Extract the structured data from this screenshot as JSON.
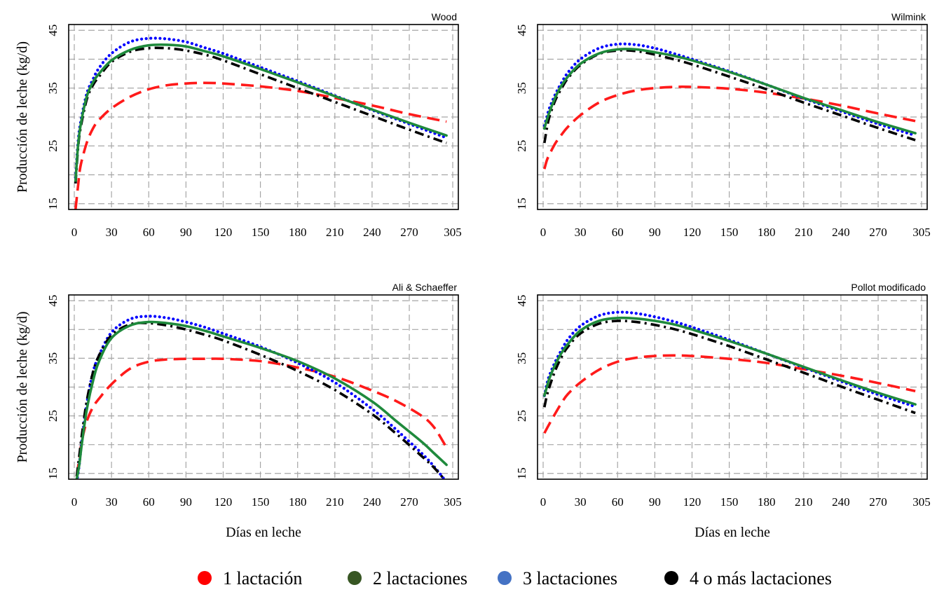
{
  "chart_data": {
    "type": "line",
    "shared": {
      "ylabel": "Producción de leche (kg/d)",
      "xlabel": "Días en leche",
      "xlim": [
        0,
        305
      ],
      "ylim": [
        14,
        46
      ],
      "xticks": [
        0,
        30,
        60,
        90,
        120,
        150,
        180,
        210,
        240,
        270,
        305
      ],
      "yticks": [
        15,
        25,
        35,
        45
      ],
      "grid": true
    },
    "legend": [
      {
        "label": "1 lactación",
        "color": "#ff0000"
      },
      {
        "label": "2 lactaciones",
        "color": "#375623"
      },
      {
        "label": "3 lactaciones",
        "color": "#4472c4"
      },
      {
        "label": "4 o más lactaciones",
        "color": "#000000"
      }
    ],
    "series_style": [
      {
        "name": "1 lactación",
        "color": "#ff1a1a",
        "dash": "long-dash"
      },
      {
        "name": "2 lactaciones",
        "color": "#1f8a3c",
        "dash": "solid"
      },
      {
        "name": "3 lactaciones",
        "color": "#0000ff",
        "dash": "dotted"
      },
      {
        "name": "4 o más lactaciones",
        "color": "#000000",
        "dash": "dash-dot"
      }
    ],
    "panels": [
      {
        "title": "Wood",
        "x": [
          1,
          3,
          5,
          10,
          15,
          20,
          30,
          45,
          60,
          75,
          90,
          105,
          120,
          150,
          180,
          210,
          240,
          270,
          300
        ],
        "series": [
          {
            "name": "1 lactación",
            "values": [
              14.0,
              18.0,
              21.5,
              25.5,
              28.0,
              29.5,
              31.5,
              33.5,
              34.8,
              35.5,
              35.8,
              35.9,
              35.8,
              35.3,
              34.5,
              33.3,
              32.0,
              30.5,
              29.2
            ]
          },
          {
            "name": "2 lactaciones",
            "values": [
              19.0,
              25.0,
              28.5,
              33.5,
              36.0,
              37.5,
              39.8,
              41.6,
              42.4,
              42.5,
              42.2,
              41.4,
              40.5,
              38.3,
              36.0,
              33.6,
              31.3,
              29.0,
              26.8
            ]
          },
          {
            "name": "3 lactaciones",
            "values": [
              19.5,
              25.5,
              29.0,
              34.0,
              36.5,
              38.5,
              41.0,
              43.0,
              43.6,
              43.5,
              43.0,
              42.0,
              41.0,
              38.6,
              36.2,
              33.7,
              31.2,
              28.8,
              26.4
            ]
          },
          {
            "name": "4 o más lactaciones",
            "values": [
              18.5,
              24.5,
              28.0,
              33.0,
              35.5,
              37.0,
              39.5,
              41.3,
              41.9,
              41.9,
              41.5,
              40.8,
              39.8,
              37.4,
              35.0,
              32.6,
              30.2,
              27.8,
              25.5
            ]
          }
        ]
      },
      {
        "title": "Wilmink",
        "x": [
          1,
          3,
          5,
          10,
          15,
          20,
          30,
          45,
          60,
          75,
          90,
          105,
          120,
          150,
          180,
          210,
          240,
          270,
          300
        ],
        "series": [
          {
            "name": "1 lactación",
            "values": [
              21.0,
              22.5,
              23.5,
              25.5,
              27.0,
              28.3,
              30.3,
              32.5,
              33.8,
              34.6,
              35.0,
              35.2,
              35.2,
              34.9,
              34.2,
              33.2,
              32.0,
              30.6,
              29.3
            ]
          },
          {
            "name": "2 lactaciones",
            "values": [
              28.0,
              29.5,
              30.8,
              33.5,
              35.5,
              37.0,
              39.2,
              41.0,
              41.7,
              41.7,
              41.2,
              40.6,
              39.8,
              37.8,
              35.6,
              33.3,
              31.2,
              29.1,
              27.2
            ]
          },
          {
            "name": "3 lactaciones",
            "values": [
              28.5,
              30.0,
              31.5,
              34.0,
              36.0,
              37.7,
              40.0,
              41.9,
              42.6,
              42.5,
              41.9,
              41.0,
              40.0,
              37.9,
              35.6,
              33.2,
              31.0,
              28.8,
              26.8
            ]
          },
          {
            "name": "4 o más lactaciones",
            "values": [
              25.5,
              28.0,
              30.0,
              33.0,
              35.0,
              36.7,
              39.0,
              40.9,
              41.5,
              41.4,
              40.8,
              40.0,
              39.1,
              37.0,
              34.8,
              32.5,
              30.3,
              28.1,
              26.0
            ]
          }
        ]
      },
      {
        "title": "Ali & Schaeffer",
        "x": [
          2,
          4,
          6,
          10,
          15,
          20,
          30,
          45,
          60,
          75,
          90,
          105,
          120,
          150,
          180,
          210,
          240,
          260,
          280,
          290,
          300
        ],
        "series": [
          {
            "name": "1 lactación",
            "values": [
              14.5,
              17.5,
              20.5,
              24.0,
              26.5,
              28.0,
              30.5,
              33.2,
              34.4,
              34.8,
              34.9,
              34.9,
              34.9,
              34.5,
              33.4,
              31.8,
              29.4,
              27.5,
              25.0,
              23.0,
              19.5
            ]
          },
          {
            "name": "2 lactaciones",
            "values": [
              14.0,
              16.5,
              20.0,
              26.0,
              31.0,
              34.5,
              38.5,
              40.7,
              41.3,
              41.1,
              40.6,
              39.8,
              38.8,
              36.8,
              34.5,
              31.5,
              27.5,
              24.0,
              20.5,
              18.5,
              16.5
            ]
          },
          {
            "name": "3 lactaciones",
            "values": [
              13.5,
              16.5,
              20.5,
              27.0,
              32.5,
              35.5,
              39.5,
              41.8,
              42.3,
              42.0,
              41.3,
              40.4,
              39.3,
              37.0,
              34.2,
              30.8,
              26.2,
              22.5,
              18.5,
              16.2,
              13.5
            ]
          },
          {
            "name": "4 o más lactaciones",
            "values": [
              14.5,
              18.0,
              21.5,
              27.5,
              32.5,
              35.5,
              39.0,
              40.9,
              41.1,
              40.7,
              40.0,
              39.1,
              38.1,
              35.6,
              32.8,
              29.5,
              25.3,
              21.8,
              18.0,
              16.0,
              13.5
            ]
          }
        ]
      },
      {
        "title": "Pollot modificado",
        "x": [
          1,
          3,
          5,
          10,
          15,
          20,
          30,
          45,
          60,
          75,
          90,
          105,
          120,
          150,
          180,
          210,
          240,
          270,
          300
        ],
        "series": [
          {
            "name": "1 lactación",
            "values": [
              22.0,
              22.8,
              23.6,
              25.5,
              27.3,
              28.8,
              30.8,
              33.0,
              34.4,
              35.1,
              35.4,
              35.5,
              35.4,
              34.9,
              34.2,
              33.1,
              32.0,
              30.7,
              29.3
            ]
          },
          {
            "name": "2 lactaciones",
            "values": [
              28.5,
              30.0,
              31.5,
              34.0,
              36.0,
              37.5,
              39.8,
              41.5,
              42.0,
              41.9,
              41.5,
              40.9,
              40.0,
              38.0,
              35.8,
              33.5,
              31.2,
              29.0,
              27.0
            ]
          },
          {
            "name": "3 lactaciones",
            "values": [
              28.5,
              30.5,
              32.0,
              34.5,
              36.5,
              38.3,
              40.6,
              42.4,
              43.0,
              42.8,
              42.2,
              41.4,
              40.4,
              38.2,
              35.8,
              33.4,
              31.0,
              28.7,
              26.6
            ]
          },
          {
            "name": "4 o más lactaciones",
            "values": [
              26.5,
              28.5,
              30.0,
              33.0,
              35.3,
              37.0,
              39.3,
              41.0,
              41.5,
              41.3,
              40.8,
              40.1,
              39.2,
              37.1,
              34.8,
              32.5,
              30.1,
              27.8,
              25.5
            ]
          }
        ]
      }
    ]
  }
}
